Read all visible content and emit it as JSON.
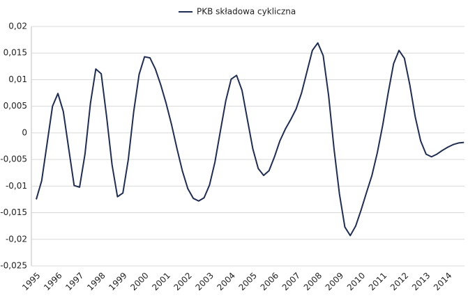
{
  "chart_data": {
    "type": "line",
    "series": [
      {
        "name": "PKB składowa cykliczna",
        "color": "#1f2d50",
        "values": [
          -0.0125,
          -0.009,
          -0.002,
          0.005,
          0.0074,
          0.004,
          -0.003,
          -0.0099,
          -0.0102,
          -0.004,
          0.0055,
          0.012,
          0.0111,
          0.003,
          -0.006,
          -0.012,
          -0.0113,
          -0.005,
          0.004,
          0.011,
          0.0143,
          0.0141,
          0.012,
          0.009,
          0.0055,
          0.0015,
          -0.003,
          -0.0072,
          -0.0105,
          -0.0123,
          -0.0128,
          -0.0122,
          -0.0098,
          -0.0055,
          0.0003,
          0.006,
          0.0101,
          0.0108,
          0.008,
          0.0025,
          -0.003,
          -0.0067,
          -0.008,
          -0.0071,
          -0.0045,
          -0.0015,
          0.0007,
          0.0025,
          0.0045,
          0.0075,
          0.0115,
          0.0155,
          0.0169,
          0.0145,
          0.007,
          -0.003,
          -0.0115,
          -0.0177,
          -0.0193,
          -0.0175,
          -0.0145,
          -0.0112,
          -0.008,
          -0.0037,
          0.0015,
          0.0075,
          0.013,
          0.0155,
          0.014,
          0.009,
          0.003,
          -0.0015,
          -0.004,
          -0.0045,
          -0.004,
          -0.0033,
          -0.0027,
          -0.0022,
          -0.0019,
          -0.0018
        ]
      }
    ],
    "categories": [
      "1995",
      null,
      null,
      null,
      "1996",
      null,
      null,
      null,
      "1997",
      null,
      null,
      null,
      "1998",
      null,
      null,
      null,
      "1999",
      null,
      null,
      null,
      "2000",
      null,
      null,
      null,
      "2001",
      null,
      null,
      null,
      "2002",
      null,
      null,
      null,
      "2003",
      null,
      null,
      null,
      "2004",
      null,
      null,
      null,
      "2005",
      null,
      null,
      null,
      "2006",
      null,
      null,
      null,
      "2007",
      null,
      null,
      null,
      "2008",
      null,
      null,
      null,
      "2009",
      null,
      null,
      null,
      "2010",
      null,
      null,
      null,
      "2011",
      null,
      null,
      null,
      "2012",
      null,
      null,
      null,
      "2013",
      null,
      null,
      null,
      "2014",
      null,
      null,
      null
    ],
    "ylim": [
      -0.025,
      0.02
    ],
    "yticks": [
      {
        "value": -0.025,
        "label": "-0,025"
      },
      {
        "value": -0.02,
        "label": "-0,02"
      },
      {
        "value": -0.015,
        "label": "-0,015"
      },
      {
        "value": -0.01,
        "label": "-0,01"
      },
      {
        "value": -0.005,
        "label": "-0,005"
      },
      0,
      {
        "value": 0.005,
        "label": "0,005"
      },
      {
        "value": 0.01,
        "label": "0,01"
      },
      {
        "value": 0.015,
        "label": "0,015"
      },
      {
        "value": 0.02,
        "label": "0,02"
      }
    ],
    "grid": true,
    "legend": "top"
  }
}
